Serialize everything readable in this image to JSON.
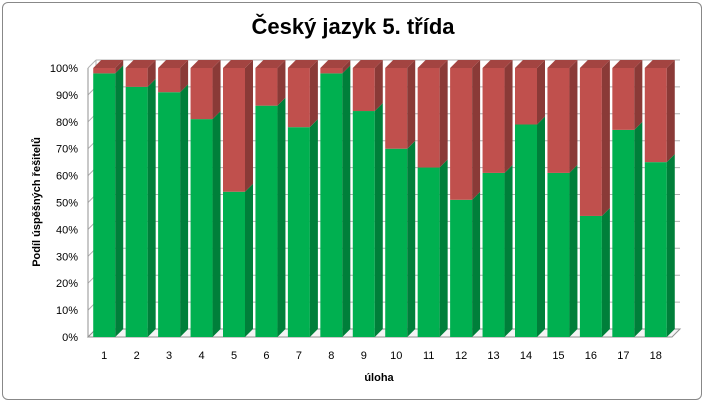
{
  "chart_data": {
    "type": "bar",
    "stacked": true,
    "percent": true,
    "title": "Český jazyk 5. třída",
    "xlabel": "úloha",
    "ylabel": "Podíl úspěšných řešitelů",
    "categories": [
      "1",
      "2",
      "3",
      "4",
      "5",
      "6",
      "7",
      "8",
      "9",
      "10",
      "11",
      "12",
      "13",
      "14",
      "15",
      "16",
      "17",
      "18"
    ],
    "ylim": [
      0,
      100
    ],
    "yticks": [
      "0%",
      "10%",
      "20%",
      "30%",
      "40%",
      "50%",
      "60%",
      "70%",
      "80%",
      "90%",
      "100%"
    ],
    "grid": true,
    "legend": "none",
    "series": [
      {
        "values": [
          98,
          93,
          91,
          81,
          54,
          86,
          78,
          98,
          84,
          70,
          63,
          51,
          61,
          79,
          61,
          45,
          77,
          65
        ],
        "color": "#00B050"
      },
      {
        "values": [
          2,
          7,
          9,
          19,
          46,
          14,
          22,
          2,
          16,
          30,
          37,
          49,
          39,
          21,
          39,
          55,
          23,
          35
        ],
        "color": "#C0504D"
      }
    ]
  }
}
